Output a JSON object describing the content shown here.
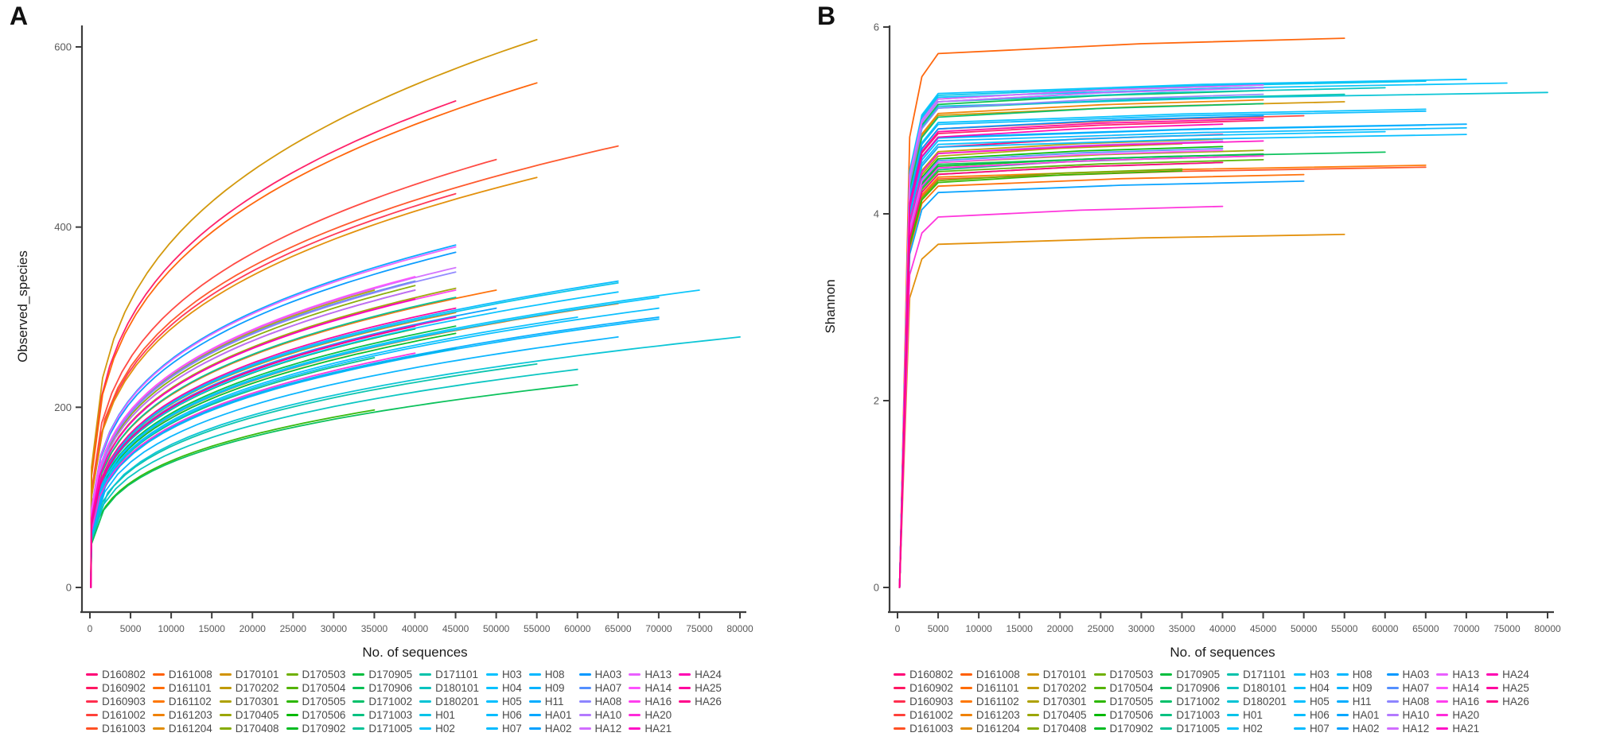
{
  "figure": {
    "panels": [
      {
        "letter": "A",
        "ylabel": "Observed_species",
        "xlabel": "No. of sequences",
        "ylim": [
          0,
          600
        ],
        "yticks": [
          0,
          200,
          400,
          600
        ],
        "value_key": "observed_species"
      },
      {
        "letter": "B",
        "ylabel": "Shannon",
        "xlabel": "No. of sequences",
        "ylim": [
          0,
          6
        ],
        "yticks": [
          0,
          2,
          4,
          6
        ],
        "value_key": "shannon"
      }
    ],
    "x_axis": {
      "min": 0,
      "max": 80000,
      "step": 5000,
      "tick_labels": [
        "0",
        "5000",
        "10000",
        "15000",
        "20000",
        "25000",
        "30000",
        "35000",
        "40000",
        "45000",
        "50000",
        "55000",
        "60000",
        "65000",
        "70000",
        "75000",
        "80000"
      ]
    }
  },
  "colors": {
    "background": "#ffffff",
    "axis_line": "#3c3c3c",
    "tick_label": "#595959",
    "axis_title": "#1a1a1a",
    "panel_letter": "#111111",
    "legend_text": "#4a4a4a"
  },
  "chart_data": {
    "type": "line",
    "description": "Alpha-diversity rarefaction curves per sample. Panel A: Observed_species vs No. of sequences (saturating curves). Panel B: Shannon index vs No. of sequences (steep rise then plateau by ~5000 sequences). Each sample line ends at its sequencing depth (max_sequences).",
    "xlabel": "No. of sequences",
    "x_range": [
      0,
      80000
    ],
    "panel_A": {
      "ylabel": "Observed_species",
      "y_range": [
        0,
        600
      ]
    },
    "panel_B": {
      "ylabel": "Shannon",
      "y_range": [
        0,
        6
      ]
    },
    "color_palette": "ggplot2 default hue palette, HCL hues 15-375, chroma 100, luminance 65, assigned in legend order",
    "legend_layout": {
      "rows": 5,
      "columns": 11,
      "fill": "column-major"
    },
    "samples": [
      {
        "id": "D160802",
        "max_sequences": 40000,
        "observed_species": 330,
        "shannon": 4.85
      },
      {
        "id": "D160902",
        "max_sequences": 45000,
        "observed_species": 540,
        "shannon": 5.0
      },
      {
        "id": "D160903",
        "max_sequences": 45000,
        "observed_species": 437,
        "shannon": 4.62
      },
      {
        "id": "D161002",
        "max_sequences": 50000,
        "observed_species": 475,
        "shannon": 5.05
      },
      {
        "id": "D161003",
        "max_sequences": 65000,
        "observed_species": 490,
        "shannon": 4.5
      },
      {
        "id": "D161008",
        "max_sequences": 55000,
        "observed_species": 560,
        "shannon": 5.88
      },
      {
        "id": "D161101",
        "max_sequences": 50000,
        "observed_species": 330,
        "shannon": 4.42
      },
      {
        "id": "D161102",
        "max_sequences": 65000,
        "observed_species": 315,
        "shannon": 4.52
      },
      {
        "id": "D161203",
        "max_sequences": 45000,
        "observed_species": 305,
        "shannon": 5.22
      },
      {
        "id": "D161204",
        "max_sequences": 55000,
        "observed_species": 455,
        "shannon": 3.78
      },
      {
        "id": "D170101",
        "max_sequences": 55000,
        "observed_species": 608,
        "shannon": 5.2
      },
      {
        "id": "D170202",
        "max_sequences": 40000,
        "observed_species": 340,
        "shannon": 4.8
      },
      {
        "id": "D170301",
        "max_sequences": 35000,
        "observed_species": 330,
        "shannon": 4.75
      },
      {
        "id": "D170405",
        "max_sequences": 45000,
        "observed_species": 332,
        "shannon": 4.68
      },
      {
        "id": "D170408",
        "max_sequences": 40000,
        "observed_species": 335,
        "shannon": 4.55
      },
      {
        "id": "D170503",
        "max_sequences": 35000,
        "observed_species": 332,
        "shannon": 4.48
      },
      {
        "id": "D170504",
        "max_sequences": 45000,
        "observed_species": 300,
        "shannon": 4.58
      },
      {
        "id": "D170505",
        "max_sequences": 35000,
        "observed_species": 197,
        "shannon": 4.46
      },
      {
        "id": "D170506",
        "max_sequences": 40000,
        "observed_species": 287,
        "shannon": 4.72
      },
      {
        "id": "D170902",
        "max_sequences": 45000,
        "observed_species": 282,
        "shannon": 4.64
      },
      {
        "id": "D170905",
        "max_sequences": 45000,
        "observed_species": 290,
        "shannon": 5.32
      },
      {
        "id": "D170906",
        "max_sequences": 60000,
        "observed_species": 225,
        "shannon": 4.66
      },
      {
        "id": "D171002",
        "max_sequences": 45000,
        "observed_species": 265,
        "shannon": 5.18
      },
      {
        "id": "D171003",
        "max_sequences": 35000,
        "observed_species": 255,
        "shannon": 4.6
      },
      {
        "id": "D171005",
        "max_sequences": 45000,
        "observed_species": 322,
        "shannon": 5.38
      },
      {
        "id": "D171101",
        "max_sequences": 55000,
        "observed_species": 248,
        "shannon": 5.28
      },
      {
        "id": "D180101",
        "max_sequences": 60000,
        "observed_species": 242,
        "shannon": 5.35
      },
      {
        "id": "D180201",
        "max_sequences": 80000,
        "observed_species": 278,
        "shannon": 5.3
      },
      {
        "id": "H01",
        "max_sequences": 65000,
        "observed_species": 338,
        "shannon": 5.42
      },
      {
        "id": "H02",
        "max_sequences": 75000,
        "observed_species": 330,
        "shannon": 5.4
      },
      {
        "id": "H03",
        "max_sequences": 70000,
        "observed_species": 322,
        "shannon": 5.44
      },
      {
        "id": "H04",
        "max_sequences": 65000,
        "observed_species": 328,
        "shannon": 5.12
      },
      {
        "id": "H05",
        "max_sequences": 60000,
        "observed_species": 300,
        "shannon": 4.88
      },
      {
        "id": "H06",
        "max_sequences": 70000,
        "observed_species": 310,
        "shannon": 4.85
      },
      {
        "id": "H07",
        "max_sequences": 65000,
        "observed_species": 340,
        "shannon": 5.1
      },
      {
        "id": "H08",
        "max_sequences": 70000,
        "observed_species": 298,
        "shannon": 4.92
      },
      {
        "id": "H09",
        "max_sequences": 65000,
        "observed_species": 278,
        "shannon": 4.95
      },
      {
        "id": "H11",
        "max_sequences": 70000,
        "observed_species": 300,
        "shannon": 4.96
      },
      {
        "id": "HA01",
        "max_sequences": 45000,
        "observed_species": 380,
        "shannon": 5.35
      },
      {
        "id": "HA02",
        "max_sequences": 50000,
        "observed_species": 310,
        "shannon": 4.35
      },
      {
        "id": "HA03",
        "max_sequences": 45000,
        "observed_species": 372,
        "shannon": 5.05
      },
      {
        "id": "HA07",
        "max_sequences": 40000,
        "observed_species": 340,
        "shannon": 4.7
      },
      {
        "id": "HA08",
        "max_sequences": 45000,
        "observed_species": 350,
        "shannon": 5.28
      },
      {
        "id": "HA10",
        "max_sequences": 40000,
        "observed_species": 330,
        "shannon": 4.78
      },
      {
        "id": "HA12",
        "max_sequences": 45000,
        "observed_species": 355,
        "shannon": 5.35
      },
      {
        "id": "HA13",
        "max_sequences": 45000,
        "observed_species": 378,
        "shannon": 5.38
      },
      {
        "id": "HA14",
        "max_sequences": 40000,
        "observed_species": 345,
        "shannon": 4.68
      },
      {
        "id": "HA16",
        "max_sequences": 45000,
        "observed_species": 330,
        "shannon": 4.62
      },
      {
        "id": "HA20",
        "max_sequences": 40000,
        "observed_species": 260,
        "shannon": 4.08
      },
      {
        "id": "HA21",
        "max_sequences": 45000,
        "observed_species": 300,
        "shannon": 4.78
      },
      {
        "id": "HA24",
        "max_sequences": 40000,
        "observed_species": 320,
        "shannon": 4.96
      },
      {
        "id": "HA25",
        "max_sequences": 45000,
        "observed_species": 310,
        "shannon": 5.02
      },
      {
        "id": "HA26",
        "max_sequences": 40000,
        "observed_species": 290,
        "shannon": 4.55
      }
    ]
  }
}
